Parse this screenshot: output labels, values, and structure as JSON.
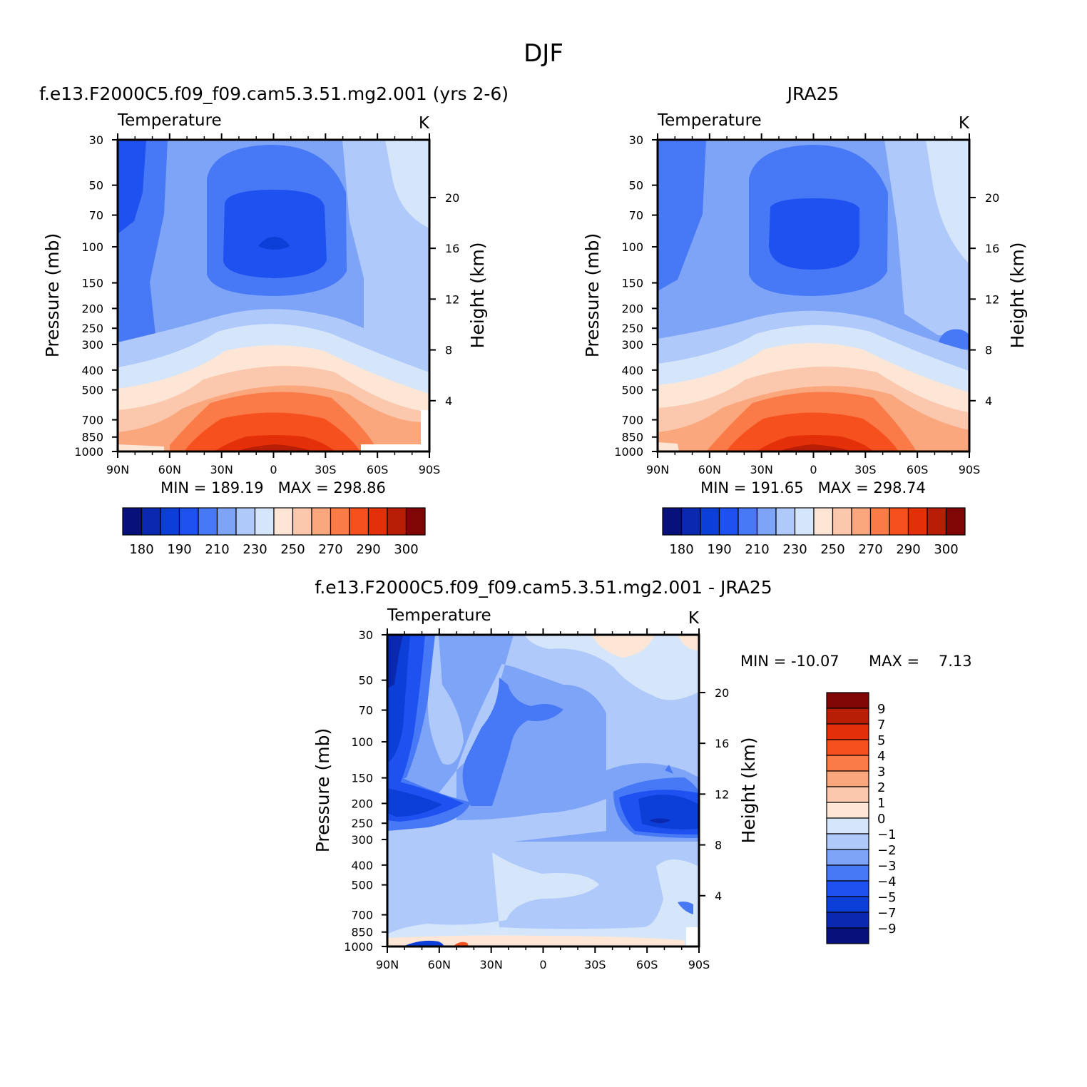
{
  "figure_title": "DJF",
  "colors": {
    "abs_scale": [
      "#08107c",
      "#0a28b0",
      "#0c3fd8",
      "#1f50f0",
      "#4778f6",
      "#7ea4f8",
      "#b0c9fb",
      "#d5e6fb",
      "#fde6d6",
      "#fcc8ad",
      "#fba77e",
      "#fa7a48",
      "#f6501f",
      "#e43008",
      "#b81d06",
      "#800505"
    ],
    "diff_scale": [
      "#08107c",
      "#0a28b0",
      "#0c3fd8",
      "#1f50f0",
      "#4778f6",
      "#7ea4f8",
      "#b0c9fb",
      "#d5e6fb",
      "#fde6d6",
      "#fcc8ad",
      "#fba77e",
      "#fa7a48",
      "#f6501f",
      "#e43008",
      "#b81d06",
      "#800505"
    ]
  },
  "panels": [
    {
      "title": "f.e13.F2000C5.f09_f09.cam5.3.51.mg2.001 (yrs 2-6)",
      "variable": "Temperature",
      "units": "K",
      "ylabel": "Pressure (mb)",
      "ylabel_right": "Height (km)",
      "stats": "MIN = 189.19   MAX = 298.86",
      "colorbar_labels": [
        "180",
        "190",
        "210",
        "230",
        "250",
        "270",
        "290",
        "300"
      ]
    },
    {
      "title": "JRA25",
      "variable": "Temperature",
      "units": "K",
      "ylabel": "Pressure (mb)",
      "ylabel_right": "Height (km)",
      "stats": "MIN = 191.65   MAX = 298.74",
      "colorbar_labels": [
        "180",
        "190",
        "210",
        "230",
        "250",
        "270",
        "290",
        "300"
      ]
    },
    {
      "title": "f.e13.F2000C5.f09_f09.cam5.3.51.mg2.001 - JRA25",
      "variable": "Temperature",
      "units": "K",
      "ylabel": "Pressure (mb)",
      "ylabel_right": "Height (km)",
      "stats_min": "MIN = -10.07",
      "stats_max": "MAX =    7.13",
      "colorbar_labels": [
        "9",
        "7",
        "5",
        "4",
        "3",
        "2",
        "1",
        "0",
        "-1",
        "-2",
        "-3",
        "-4",
        "-5",
        "-7",
        "-9"
      ]
    }
  ],
  "chart_data": [
    {
      "type": "heatmap",
      "title": "f.e13.F2000C5.f09_f09.cam5.3.51.mg2.001 (yrs 2-6)",
      "xlabel": "",
      "ylabel": "Pressure (mb)",
      "ylabel_right": "Height (km)",
      "x_ticks": [
        "90N",
        "60N",
        "30N",
        "0",
        "30S",
        "60S",
        "90S"
      ],
      "x_range": [
        90,
        -90
      ],
      "y_ticks": [
        30,
        50,
        70,
        100,
        150,
        200,
        250,
        300,
        400,
        500,
        700,
        850,
        1000
      ],
      "y_range": [
        1000,
        30
      ],
      "y_scale": "log",
      "y_right_ticks": [
        4,
        8,
        12,
        16,
        20
      ],
      "contour_levels": [
        180,
        185,
        190,
        200,
        210,
        220,
        230,
        240,
        250,
        260,
        270,
        280,
        290,
        295,
        300
      ],
      "units": "K",
      "min": 189.19,
      "max": 298.86
    },
    {
      "type": "heatmap",
      "title": "JRA25",
      "xlabel": "",
      "ylabel": "Pressure (mb)",
      "ylabel_right": "Height (km)",
      "x_ticks": [
        "90N",
        "60N",
        "30N",
        "0",
        "30S",
        "60S",
        "90S"
      ],
      "x_range": [
        90,
        -90
      ],
      "y_ticks": [
        30,
        50,
        70,
        100,
        150,
        200,
        250,
        300,
        400,
        500,
        700,
        850,
        1000
      ],
      "y_range": [
        1000,
        30
      ],
      "y_scale": "log",
      "y_right_ticks": [
        4,
        8,
        12,
        16,
        20
      ],
      "contour_levels": [
        180,
        185,
        190,
        200,
        210,
        220,
        230,
        240,
        250,
        260,
        270,
        280,
        290,
        295,
        300
      ],
      "units": "K",
      "min": 191.65,
      "max": 298.74
    },
    {
      "type": "heatmap",
      "title": "f.e13.F2000C5.f09_f09.cam5.3.51.mg2.001 - JRA25",
      "xlabel": "",
      "ylabel": "Pressure (mb)",
      "ylabel_right": "Height (km)",
      "x_ticks": [
        "90N",
        "60N",
        "30N",
        "0",
        "30S",
        "60S",
        "90S"
      ],
      "x_range": [
        90,
        -90
      ],
      "y_ticks": [
        30,
        50,
        70,
        100,
        150,
        200,
        250,
        300,
        400,
        500,
        700,
        850,
        1000
      ],
      "y_range": [
        1000,
        30
      ],
      "y_scale": "log",
      "y_right_ticks": [
        4,
        8,
        12,
        16,
        20
      ],
      "contour_levels": [
        -9,
        -7,
        -5,
        -4,
        -3,
        -2,
        -1,
        0,
        1,
        2,
        3,
        4,
        5,
        7,
        9
      ],
      "units": "K",
      "min": -10.07,
      "max": 7.13
    }
  ]
}
